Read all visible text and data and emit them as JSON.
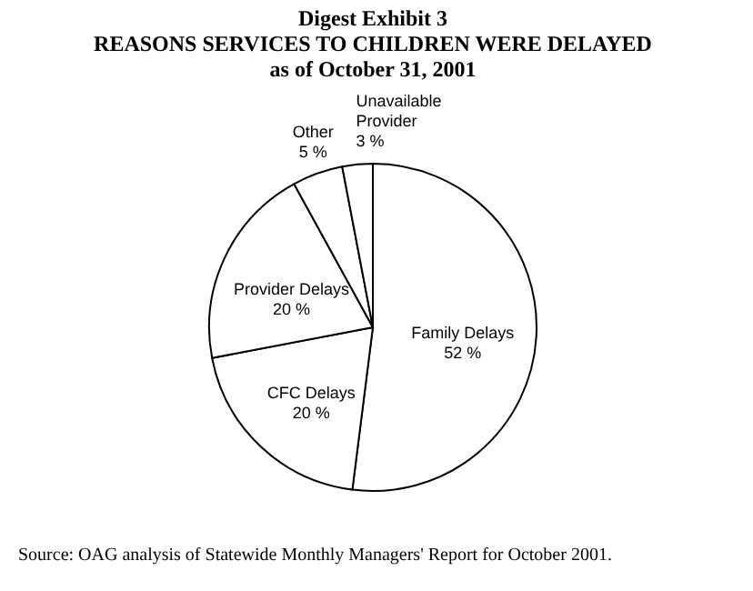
{
  "chart_data": {
    "type": "pie",
    "title": [
      "Digest Exhibit 3",
      "REASONS SERVICES TO CHILDREN WERE DELAYED",
      "as of October 31, 2001"
    ],
    "categories": [
      "Family Delays",
      "CFC Delays",
      "Provider Delays",
      "Other",
      "Unavailable Provider"
    ],
    "values": [
      52,
      20,
      20,
      5,
      3
    ],
    "value_labels": [
      "52 %",
      "20 %",
      "20 %",
      "5 %",
      "3 %"
    ],
    "colors": [
      "#ffffff",
      "#ffffff",
      "#ffffff",
      "#ffffff",
      "#ffffff"
    ],
    "annotations": [
      "Source:  OAG analysis of Statewide Monthly Managers' Report for October 2001."
    ],
    "legend": false
  }
}
